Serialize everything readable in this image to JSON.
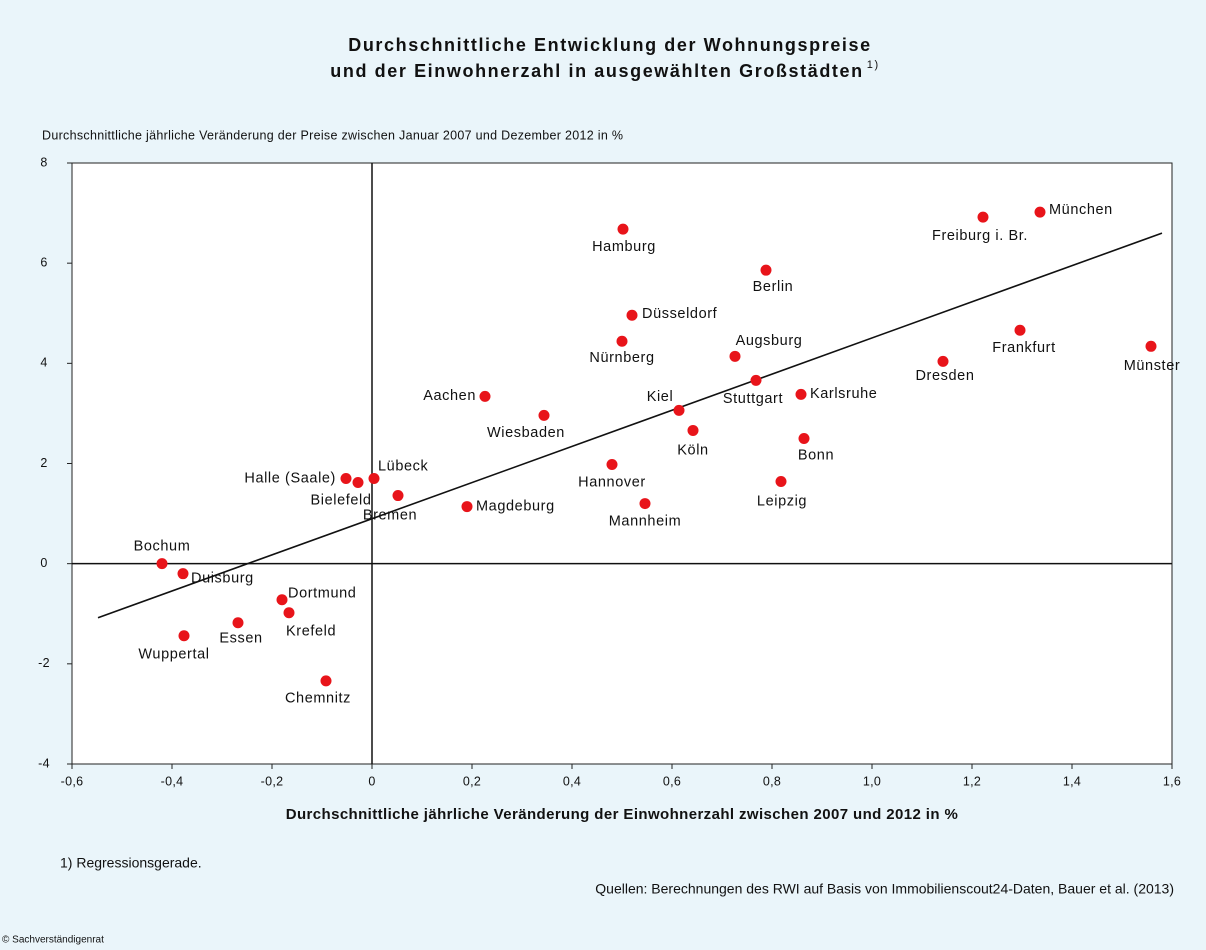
{
  "chart_data": {
    "type": "scatter",
    "title": [
      "Durchschnittliche Entwicklung der Wohnungspreise",
      "und der Einwohnerzahl in ausgewählten Großstädten"
    ],
    "title_note": "1)",
    "y_label": "Durchschnittliche jährliche Veränderung der Preise zwischen Januar 2007 und Dezember 2012 in %",
    "x_label": "Durchschnittliche jährliche Veränderung der Einwohnerzahl zwischen 2007 und 2012 in %",
    "footnote": "1) Regressionsgerade.",
    "source": "Quellen: Berechnungen des RWI auf Basis von Immobilienscout24-Daten, Bauer et al. (2013)",
    "copyright": "© Sachverständigenrat",
    "color": "#e8141a",
    "labels": [
      "Bochum",
      "Duisburg",
      "Wuppertal",
      "Essen",
      "Dortmund",
      "Krefeld",
      "Chemnitz",
      "Halle (Saale)",
      "Bielefeld",
      "Lübeck",
      "Bremen",
      "Magdeburg",
      "Aachen",
      "Wiesbaden",
      "Hamburg",
      "Düsseldorf",
      "Nürnberg",
      "Hannover",
      "Mannheim",
      "Kiel",
      "Köln",
      "Augsburg",
      "Stuttgart",
      "Berlin",
      "Leipzig",
      "Karlsruhe",
      "Bonn",
      "Dresden",
      "Freiburg i. Br.",
      "Frankfurt",
      "München",
      "Münster"
    ],
    "x": [
      -0.42,
      -0.378,
      -0.376,
      -0.268,
      -0.18,
      -0.166,
      -0.092,
      -0.052,
      -0.028,
      0.004,
      0.052,
      0.19,
      0.226,
      0.344,
      0.502,
      0.52,
      0.5,
      0.48,
      0.546,
      0.614,
      0.642,
      0.726,
      0.768,
      0.788,
      0.818,
      0.858,
      0.864,
      1.142,
      1.222,
      1.296,
      1.336,
      1.558
    ],
    "y": [
      0,
      -0.2,
      -1.44,
      -1.18,
      -0.72,
      -0.98,
      -2.34,
      1.7,
      1.62,
      1.7,
      1.36,
      1.14,
      3.34,
      2.96,
      6.68,
      4.96,
      4.44,
      1.98,
      1.2,
      3.06,
      2.66,
      4.14,
      3.66,
      5.86,
      1.64,
      3.38,
      2.5,
      4.04,
      6.92,
      4.66,
      7.02,
      4.34
    ],
    "regression": {
      "x": [
        -0.548,
        1.58
      ],
      "y": [
        -1.08,
        6.6
      ]
    },
    "xlim": [
      -0.6,
      1.6
    ],
    "ylim": [
      -4,
      8
    ],
    "xticks": [
      {
        "value": -0.6,
        "label": "-0,6"
      },
      {
        "value": -0.4,
        "label": "-0,4"
      },
      {
        "value": -0.2,
        "label": "-0,2"
      },
      0,
      {
        "value": 0.2,
        "label": "0,2"
      },
      {
        "value": 0.4,
        "label": "0,4"
      },
      {
        "value": 0.6,
        "label": "0,6"
      },
      {
        "value": 0.8,
        "label": "0,8"
      },
      {
        "value": 1.0,
        "label": "1,0"
      },
      {
        "value": 1.2,
        "label": "1,2"
      },
      {
        "value": 1.4,
        "label": "1,4"
      },
      {
        "value": 1.6,
        "label": "1,6"
      }
    ],
    "yticks": [
      -4,
      -2,
      0,
      2,
      4,
      6,
      8
    ]
  }
}
